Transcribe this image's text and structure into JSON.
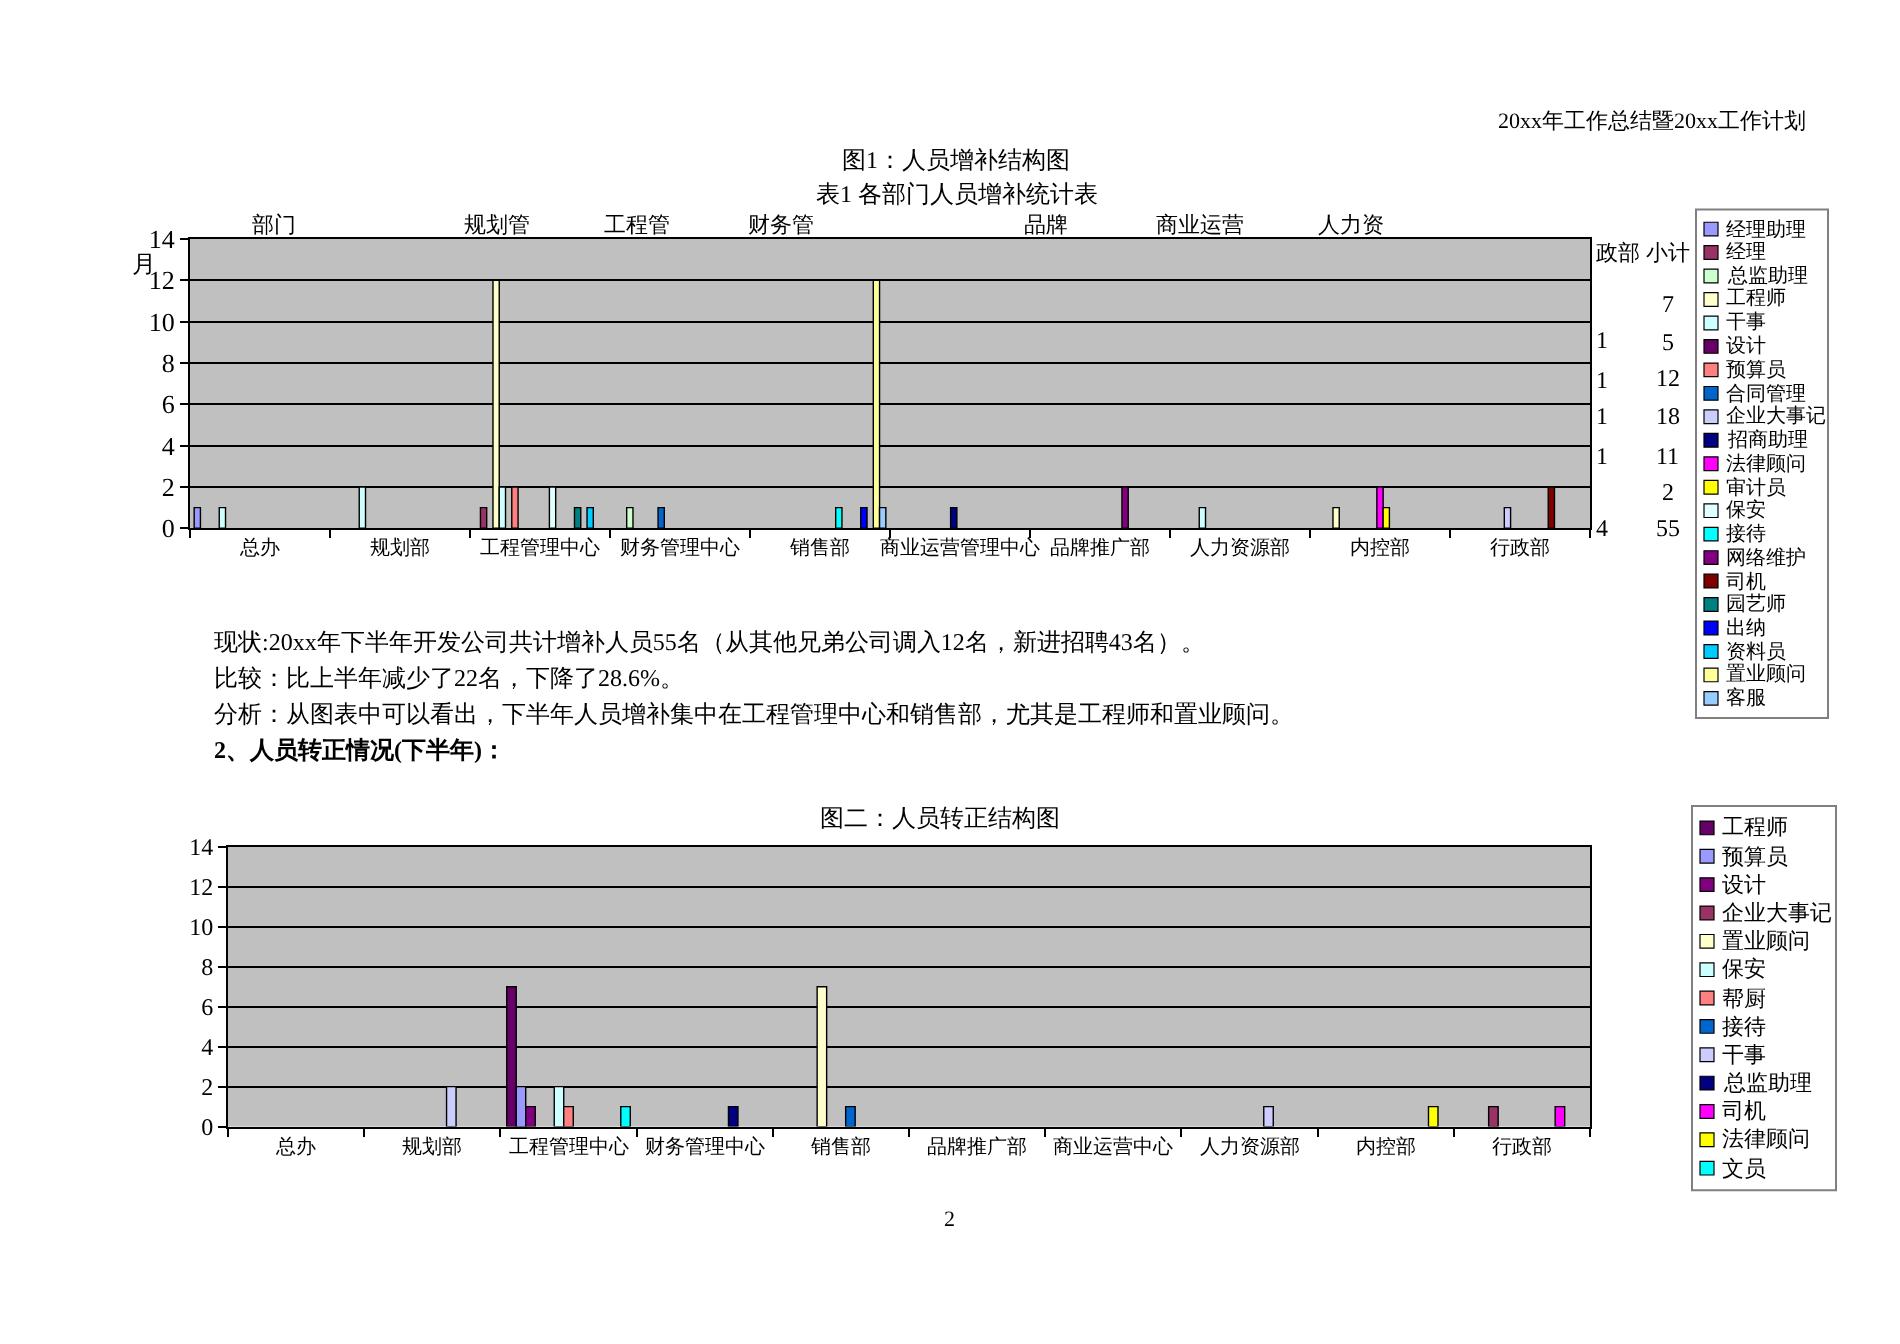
{
  "chart_data": [
    {
      "type": "bar",
      "title": "图1：人员增补结构图",
      "subtitle": "表1 各部门人员增补统计表",
      "categories": [
        "总办",
        "规划部",
        "工程管理中心",
        "财务管理中心",
        "销售部",
        "商业运营管理中心",
        "品牌推广部",
        "人力资源部",
        "内控部",
        "行政部"
      ],
      "series": [
        {
          "name": "经理助理",
          "color": "#9999ff",
          "values": [
            1,
            null,
            null,
            null,
            null,
            null,
            null,
            null,
            null,
            null
          ]
        },
        {
          "name": "经理",
          "color": "#993366",
          "values": [
            null,
            null,
            1,
            null,
            null,
            null,
            null,
            null,
            null,
            null
          ]
        },
        {
          "name": "总监助理",
          "color": "#ccffcc",
          "values": [
            null,
            null,
            null,
            1,
            null,
            null,
            null,
            null,
            null,
            null
          ]
        },
        {
          "name": "工程师",
          "color": "#ffffcc",
          "values": [
            null,
            null,
            12,
            null,
            null,
            null,
            null,
            null,
            1,
            null
          ]
        },
        {
          "name": "干事",
          "color": "#ccffff",
          "values": [
            1,
            2,
            2,
            null,
            null,
            null,
            null,
            1,
            null,
            null
          ]
        },
        {
          "name": "设计",
          "color": "#660066",
          "values": [
            null,
            null,
            null,
            null,
            null,
            null,
            null,
            null,
            null,
            null
          ]
        },
        {
          "name": "预算员",
          "color": "#ff8080",
          "values": [
            null,
            null,
            2,
            null,
            null,
            null,
            null,
            null,
            null,
            null
          ]
        },
        {
          "name": "合同管理",
          "color": "#0066cc",
          "values": [
            null,
            null,
            null,
            1,
            null,
            null,
            null,
            null,
            null,
            null
          ]
        },
        {
          "name": "企业大事记",
          "color": "#ccccff",
          "values": [
            null,
            null,
            null,
            null,
            null,
            null,
            null,
            null,
            null,
            1
          ]
        },
        {
          "name": "招商助理",
          "color": "#000080",
          "values": [
            null,
            null,
            null,
            null,
            null,
            1,
            null,
            null,
            null,
            null
          ]
        },
        {
          "name": "法律顾问",
          "color": "#ff00ff",
          "values": [
            null,
            null,
            null,
            null,
            null,
            null,
            null,
            null,
            2,
            null
          ]
        },
        {
          "name": "审计员",
          "color": "#ffff00",
          "values": [
            null,
            null,
            null,
            null,
            null,
            null,
            null,
            null,
            1,
            null
          ]
        },
        {
          "name": "保安",
          "color": "#e0ffff",
          "values": [
            null,
            null,
            2,
            null,
            null,
            null,
            null,
            null,
            null,
            null
          ]
        },
        {
          "name": "接待",
          "color": "#00ffff",
          "values": [
            null,
            null,
            null,
            null,
            1,
            null,
            null,
            null,
            null,
            null
          ]
        },
        {
          "name": "网络维护",
          "color": "#800080",
          "values": [
            null,
            null,
            null,
            null,
            null,
            null,
            2,
            null,
            null,
            null
          ]
        },
        {
          "name": "司机",
          "color": "#800000",
          "values": [
            null,
            null,
            null,
            null,
            null,
            null,
            null,
            null,
            null,
            2
          ]
        },
        {
          "name": "园艺师",
          "color": "#008080",
          "values": [
            null,
            null,
            1,
            null,
            null,
            null,
            null,
            null,
            null,
            null
          ]
        },
        {
          "name": "出纳",
          "color": "#0000ff",
          "values": [
            null,
            null,
            null,
            null,
            1,
            null,
            null,
            null,
            null,
            null
          ]
        },
        {
          "name": "资料员",
          "color": "#00ccff",
          "values": [
            null,
            null,
            1,
            null,
            null,
            null,
            null,
            null,
            null,
            null
          ]
        },
        {
          "name": "置业顾问",
          "color": "#ffff99",
          "values": [
            null,
            null,
            null,
            null,
            12,
            null,
            null,
            null,
            null,
            null
          ]
        },
        {
          "name": "客服",
          "color": "#99ccff",
          "values": [
            null,
            null,
            null,
            null,
            1,
            null,
            null,
            null,
            null,
            null
          ]
        }
      ],
      "ylim": [
        0,
        14
      ],
      "yticks": [
        0,
        2,
        4,
        6,
        8,
        10,
        12,
        14
      ],
      "grid": "y",
      "legend": "right",
      "annotations": [
        "20xx年工作总结暨20xx工作计划",
        "部门",
        "规划管",
        "工程管",
        "财务管",
        "品牌",
        "商业运营",
        "人力资",
        "政部",
        "小计",
        "7",
        "5",
        "12",
        "18",
        "11",
        "2",
        "55",
        "1",
        "1",
        "1",
        "1",
        "4",
        "月",
        "现状:20xx年下半年开发公司共计增补人员55名（从其他兄弟公司调入12名，新进招聘43名）。",
        "比较：比上半年减少了22名，下降了28.6%。",
        "分析：从图表中可以看出，下半年人员增补集中在工程管理中心和销售部，尤其是工程师和置业顾问。"
      ]
    },
    {
      "type": "bar",
      "title": "图二：人员转正结构图",
      "categories": [
        "总办",
        "规划部",
        "工程管理中心",
        "财务管理中心",
        "销售部",
        "品牌推广部",
        "商业运营中心",
        "人力资源部",
        "内控部",
        "行政部"
      ],
      "series": [
        {
          "name": "工程师",
          "color": "#660066",
          "values": [
            null,
            null,
            7,
            null,
            null,
            null,
            null,
            null,
            null,
            null
          ]
        },
        {
          "name": "预算员",
          "color": "#9999ff",
          "values": [
            null,
            null,
            2,
            null,
            null,
            null,
            null,
            null,
            null,
            null
          ]
        },
        {
          "name": "设计",
          "color": "#800080",
          "values": [
            null,
            null,
            1,
            null,
            null,
            null,
            null,
            null,
            null,
            null
          ]
        },
        {
          "name": "企业大事记",
          "color": "#993366",
          "values": [
            null,
            null,
            null,
            null,
            null,
            null,
            null,
            null,
            null,
            1
          ]
        },
        {
          "name": "置业顾问",
          "color": "#ffffcc",
          "values": [
            null,
            null,
            null,
            null,
            7,
            null,
            null,
            null,
            null,
            null
          ]
        },
        {
          "name": "保安",
          "color": "#ccffff",
          "values": [
            null,
            null,
            2,
            null,
            null,
            null,
            null,
            null,
            null,
            null
          ]
        },
        {
          "name": "帮厨",
          "color": "#ff8080",
          "values": [
            null,
            null,
            1,
            null,
            null,
            null,
            null,
            null,
            null,
            null
          ]
        },
        {
          "name": "接待",
          "color": "#0066cc",
          "values": [
            null,
            null,
            null,
            null,
            1,
            null,
            null,
            null,
            null,
            null
          ]
        },
        {
          "name": "干事",
          "color": "#ccccff",
          "values": [
            null,
            2,
            null,
            null,
            null,
            null,
            null,
            1,
            null,
            null
          ]
        },
        {
          "name": "总监助理",
          "color": "#000080",
          "values": [
            null,
            null,
            null,
            1,
            null,
            null,
            null,
            null,
            null,
            null
          ]
        },
        {
          "name": "司机",
          "color": "#ff00ff",
          "values": [
            null,
            null,
            null,
            null,
            null,
            null,
            null,
            null,
            null,
            1
          ]
        },
        {
          "name": "法律顾问",
          "color": "#ffff00",
          "values": [
            null,
            null,
            null,
            null,
            null,
            null,
            null,
            null,
            1,
            null
          ]
        },
        {
          "name": "文员",
          "color": "#00ffff",
          "values": [
            null,
            null,
            1,
            null,
            null,
            null,
            null,
            null,
            null,
            null
          ]
        }
      ],
      "ylim": [
        0,
        14
      ],
      "yticks": [
        0,
        2,
        4,
        6,
        8,
        10,
        12,
        14
      ],
      "grid": "y",
      "legend": "right",
      "annotations": [
        "2、人员转正情况(下半年)：",
        "2"
      ]
    }
  ]
}
